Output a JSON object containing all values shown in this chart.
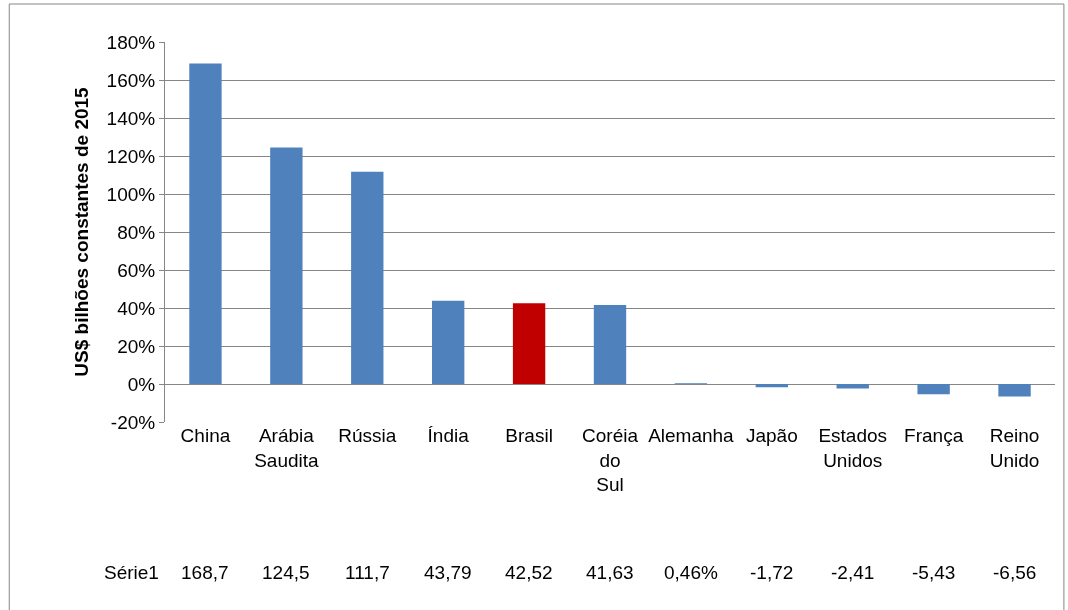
{
  "chart_data": {
    "type": "bar",
    "ylabel": "US$ bilhões constantes de 2015",
    "categories": [
      "China",
      "Arábia Saudita",
      "Rússia",
      "Índia",
      "Brasil",
      "Coréia do Sul",
      "Alemanha",
      "Japão",
      "Estados Unidos",
      "França",
      "Reino Unido"
    ],
    "series": [
      {
        "name": "Série1",
        "colors": [
          "#4f81bd",
          "#4f81bd",
          "#4f81bd",
          "#4f81bd",
          "#c00000",
          "#4f81bd",
          "#4f81bd",
          "#4f81bd",
          "#4f81bd",
          "#4f81bd",
          "#4f81bd"
        ],
        "values": [
          168.7,
          124.5,
          111.7,
          43.79,
          42.52,
          41.63,
          0.46,
          -1.72,
          -2.41,
          -5.43,
          -6.56
        ],
        "value_labels": [
          "168,7",
          "124,5",
          "111,7",
          "43,79",
          "42,52",
          "41,63",
          "0,46%",
          "-1,72",
          "-2,41",
          "-5,43",
          "-6,56"
        ]
      }
    ],
    "ylim": [
      -20,
      180
    ],
    "yticks": [
      {
        "value": -20,
        "label": "-20%"
      },
      {
        "value": 0,
        "label": "0%"
      },
      {
        "value": 20,
        "label": "20%"
      },
      {
        "value": 40,
        "label": "40%"
      },
      {
        "value": 60,
        "label": "60%"
      },
      {
        "value": 80,
        "label": "80%"
      },
      {
        "value": 100,
        "label": "100%"
      },
      {
        "value": 120,
        "label": "120%"
      },
      {
        "value": 140,
        "label": "140%"
      },
      {
        "value": 160,
        "label": "160%"
      },
      {
        "value": 180,
        "label": "180%"
      }
    ],
    "grid": "y",
    "legend": false
  }
}
